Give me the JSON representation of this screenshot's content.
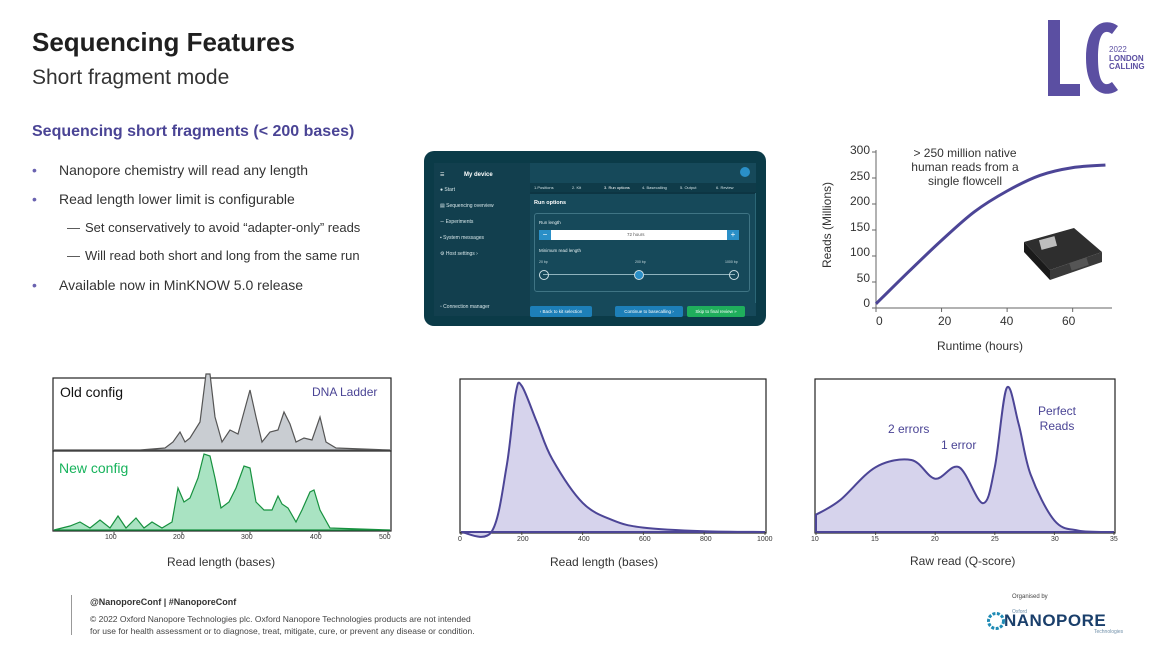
{
  "header": {
    "title": "Sequencing Features",
    "subtitle": "Short fragment mode"
  },
  "logo": {
    "year": "2022",
    "line1": "LONDON",
    "line2": "CALLING"
  },
  "content": {
    "section_title": "Sequencing short fragments (< 200 bases)",
    "bullets": [
      "Nanopore chemistry will read any length",
      "Read length lower limit is configurable",
      "Available now in MinKNOW 5.0 release"
    ],
    "sub_bullets": [
      "Set conservatively to avoid “adapter-only” reads",
      "Will read both short and long from the same run"
    ]
  },
  "app": {
    "title": "My device",
    "sidebar": [
      "Start",
      "Sequencing overview",
      "Experiments",
      "System messages",
      "Host settings"
    ],
    "connection_manager": "Connection manager",
    "steps": [
      "1.Positions",
      "2. Kit",
      "3. Run options",
      "4. Basecalling",
      "5. Output",
      "6. Review"
    ],
    "run_options_label": "Run options",
    "run_length_label": "Run length",
    "run_length_value": "72",
    "run_length_unit": "hours",
    "min_read_length_label": "Minimum read length",
    "slider_labels": [
      "20 bp",
      "200 bp",
      "1000 bp"
    ],
    "buttons": {
      "back": "Back to kit selection",
      "continue": "Continue to basecalling",
      "skip": "Skip to final review"
    }
  },
  "charts": {
    "runtime_chart": {
      "annotation_lines": [
        "> 250 million native",
        "human reads from a",
        "single flowcell"
      ],
      "xlabel": "Runtime (hours)",
      "ylabel": "Reads (Millions)",
      "x_ticks": [
        "0",
        "20",
        "40",
        "60"
      ],
      "y_ticks": [
        "0",
        "50",
        "100",
        "150",
        "200",
        "250",
        "300"
      ]
    },
    "ladder_chart": {
      "old_label": "Old config",
      "new_label": "New config",
      "ladder_label": "DNA Ladder",
      "xlabel": "Read length (bases)",
      "x_ticks": [
        "100",
        "200",
        "300",
        "400",
        "500"
      ]
    },
    "length_chart": {
      "xlabel": "Read length (bases)",
      "x_ticks": [
        "0",
        "200",
        "400",
        "600",
        "800",
        "1000"
      ]
    },
    "qscore_chart": {
      "xlabel": "Raw read (Q-score)",
      "x_ticks": [
        "10",
        "15",
        "20",
        "25",
        "30",
        "35"
      ],
      "annotations": [
        "2 errors",
        "1 error"
      ],
      "perfect_lines": [
        "Perfect",
        "Reads"
      ]
    }
  },
  "chart_data": [
    {
      "type": "line",
      "x": [
        0,
        10,
        20,
        30,
        40,
        50,
        60,
        70
      ],
      "values": [
        8,
        70,
        130,
        185,
        225,
        255,
        270,
        275
      ],
      "xlabel": "Runtime (hours)",
      "ylabel": "Reads (Millions)",
      "xlim": [
        0,
        72
      ],
      "ylim": [
        0,
        300
      ]
    },
    {
      "type": "area",
      "x": [
        0,
        100,
        150,
        180,
        200,
        250,
        300,
        400,
        500,
        600,
        800,
        1000
      ],
      "values": [
        0,
        0,
        0.45,
        0.95,
        1.0,
        0.75,
        0.5,
        0.2,
        0.08,
        0.03,
        0.005,
        0
      ],
      "xlabel": "Read length (bases)",
      "xlim": [
        0,
        1000
      ]
    },
    {
      "type": "area",
      "x": [
        10,
        12,
        15,
        18,
        20,
        22,
        24,
        25,
        26,
        27,
        28,
        30,
        32,
        35
      ],
      "values": [
        0.12,
        0.22,
        0.45,
        0.5,
        0.37,
        0.45,
        0.2,
        0.45,
        1.0,
        0.75,
        0.4,
        0.08,
        0.01,
        0
      ],
      "xlabel": "Raw read (Q-score)",
      "xlim": [
        10,
        35
      ]
    }
  ],
  "colors": {
    "accent": "#4a4495",
    "curve": "#4c4596",
    "fill": "#d6d3ec",
    "green": "#17b35c",
    "app_bg": "#0b3b48"
  }
}
